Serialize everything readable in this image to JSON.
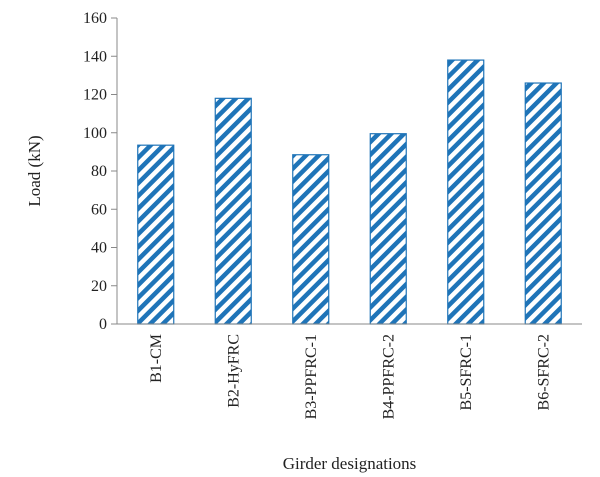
{
  "chart_data": {
    "type": "bar",
    "categories": [
      "B1-CM",
      "B2-HyFRC",
      "B3-PPFRC-1",
      "B4-PPFRC-2",
      "B5-SFRC-1",
      "B6-SFRC-2"
    ],
    "values": [
      93.5,
      118,
      88.5,
      99.5,
      138,
      126
    ],
    "xlabel": "Girder designations",
    "ylabel": "Load (kN)",
    "ylim": [
      0,
      160
    ],
    "yticks": [
      0,
      20,
      40,
      60,
      80,
      100,
      120,
      140,
      160
    ],
    "grid": false,
    "legend": "none",
    "colors": {
      "bar_stripe": "#1f74b8",
      "bar_fill": "#ffffff",
      "axis": "#888888",
      "text": "#222222"
    }
  }
}
